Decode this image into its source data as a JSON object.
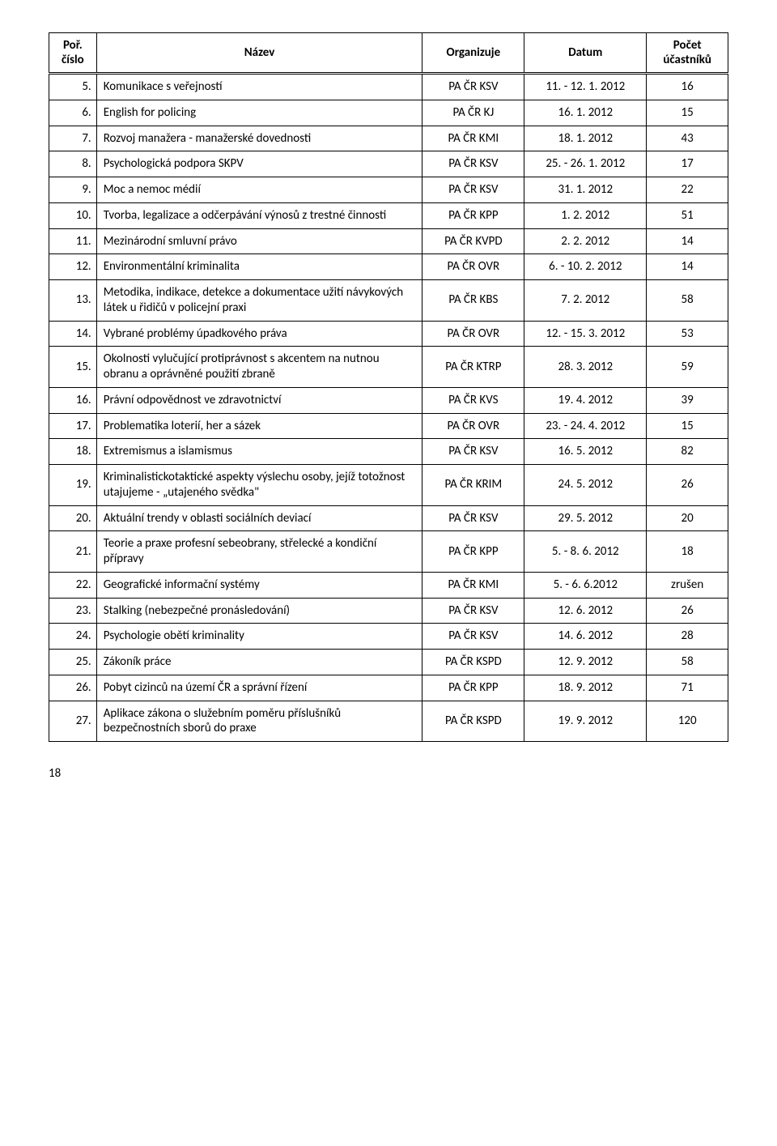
{
  "headers": {
    "num": "Poř. číslo",
    "name": "Název",
    "org": "Organizuje",
    "date": "Datum",
    "count": "Počet účastníků"
  },
  "rows": [
    {
      "num": "5.",
      "name": "Komunikace s veřejností",
      "org": "PA ČR KSV",
      "date": "11. - 12. 1. 2012",
      "count": "16"
    },
    {
      "num": "6.",
      "name": "English for policing",
      "org": "PA ČR KJ",
      "date": "16. 1. 2012",
      "count": "15"
    },
    {
      "num": "7.",
      "name": "Rozvoj manažera - manažerské dovednosti",
      "org": "PA ČR KMI",
      "date": "18. 1. 2012",
      "count": "43"
    },
    {
      "num": "8.",
      "name": "Psychologická podpora SKPV",
      "org": "PA ČR KSV",
      "date": "25. - 26. 1. 2012",
      "count": "17"
    },
    {
      "num": "9.",
      "name": "Moc a nemoc médií",
      "org": "PA ČR KSV",
      "date": "31. 1. 2012",
      "count": "22"
    },
    {
      "num": "10.",
      "name": "Tvorba, legalizace a odčerpávání výnosů z trestné činnosti",
      "org": "PA ČR KPP",
      "date": "1. 2. 2012",
      "count": "51"
    },
    {
      "num": "11.",
      "name": "Mezinárodní smluvní právo",
      "org": "PA ČR KVPD",
      "date": "2. 2. 2012",
      "count": "14"
    },
    {
      "num": "12.",
      "name": "Environmentální kriminalita",
      "org": "PA ČR OVR",
      "date": "6. - 10. 2. 2012",
      "count": "14"
    },
    {
      "num": "13.",
      "name": "Metodika, indikace, detekce a dokumentace užití návykových látek u řidičů v policejní praxi",
      "org": "PA ČR KBS",
      "date": "7. 2. 2012",
      "count": "58"
    },
    {
      "num": "14.",
      "name": "Vybrané problémy úpadkového práva",
      "org": "PA ČR OVR",
      "date": "12. - 15. 3. 2012",
      "count": "53"
    },
    {
      "num": "15.",
      "name": "Okolnosti vylučující protiprávnost s akcentem na nutnou obranu a oprávněné použití zbraně",
      "org": "PA ČR KTRP",
      "date": "28. 3. 2012",
      "count": "59"
    },
    {
      "num": "16.",
      "name": "Právní odpovědnost ve zdravotnictví",
      "org": "PA ČR KVS",
      "date": "19. 4. 2012",
      "count": "39"
    },
    {
      "num": "17.",
      "name": "Problematika loterií, her a sázek",
      "org": "PA ČR OVR",
      "date": "23. - 24. 4. 2012",
      "count": "15"
    },
    {
      "num": "18.",
      "name": "Extremismus a islamismus",
      "org": "PA ČR KSV",
      "date": "16. 5. 2012",
      "count": "82"
    },
    {
      "num": "19.",
      "name": "Kriminalistickotaktické aspekty výslechu osoby, jejíž totožnost utajujeme - „utajeného svědka\"",
      "org": "PA ČR KRIM",
      "date": "24. 5. 2012",
      "count": "26"
    },
    {
      "num": "20.",
      "name": "Aktuální trendy v oblasti sociálních deviací",
      "org": "PA ČR KSV",
      "date": "29. 5. 2012",
      "count": "20"
    },
    {
      "num": "21.",
      "name": "Teorie a praxe profesní sebeobrany, střelecké a kondiční přípravy",
      "org": "PA ČR KPP",
      "date": "5. - 8. 6. 2012",
      "count": "18"
    },
    {
      "num": "22.",
      "name": "Geografické informační systémy",
      "org": "PA ČR KMI",
      "date": "5. - 6. 6.2012",
      "count": "zrušen"
    },
    {
      "num": "23.",
      "name": "Stalking (nebezpečné pronásledování)",
      "org": "PA ČR KSV",
      "date": "12. 6. 2012",
      "count": "26"
    },
    {
      "num": "24.",
      "name": "Psychologie obětí kriminality",
      "org": "PA ČR KSV",
      "date": "14. 6. 2012",
      "count": "28"
    },
    {
      "num": "25.",
      "name": "Zákoník práce",
      "org": "PA ČR KSPD",
      "date": "12. 9. 2012",
      "count": "58"
    },
    {
      "num": "26.",
      "name": "Pobyt cizinců na území ČR a správní řízení",
      "org": "PA ČR KPP",
      "date": "18. 9. 2012",
      "count": "71"
    },
    {
      "num": "27.",
      "name": "Aplikace zákona o služebním poměru příslušníků bezpečnostních sborů do praxe",
      "org": "PA ČR KSPD",
      "date": "19. 9. 2012",
      "count": "120"
    }
  ],
  "page_number": "18"
}
